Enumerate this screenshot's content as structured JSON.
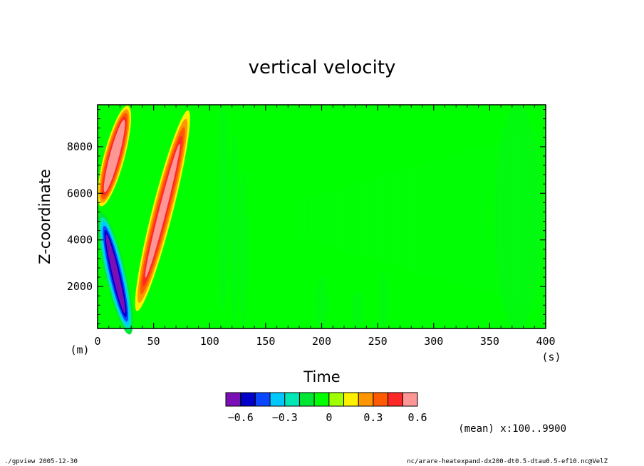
{
  "chart_data": {
    "type": "heatmap",
    "title": "vertical velocity",
    "xlabel": "Time",
    "ylabel": "Z-coordinate",
    "x_unit": "(s)",
    "y_unit": "(m)",
    "xlim": [
      0,
      400
    ],
    "ylim": [
      200,
      9800
    ],
    "x_ticks": [
      0,
      50,
      100,
      150,
      200,
      250,
      300,
      350,
      400
    ],
    "y_ticks": [
      2000,
      4000,
      6000,
      8000
    ],
    "colorbar": {
      "levels": [
        -0.7,
        -0.6,
        -0.5,
        -0.4,
        -0.3,
        -0.2,
        -0.1,
        0,
        0.1,
        0.2,
        0.3,
        0.4,
        0.5,
        0.6
      ],
      "colors": [
        "#7b0fb6",
        "#0000c8",
        "#0a46ff",
        "#00c8ff",
        "#00e6b4",
        "#00e632",
        "#00ff00",
        "#a0ff00",
        "#fff000",
        "#ff9600",
        "#ff5a00",
        "#ff2828",
        "#ff9696"
      ],
      "tick_labels": [
        "-0.6",
        "-0.3",
        "0",
        "0.3",
        "0.6"
      ]
    },
    "features": [
      {
        "kind": "upward-band",
        "start": [
          5,
          5800
        ],
        "end": [
          25,
          9400
        ],
        "peak": 0.6
      },
      {
        "kind": "downward-band",
        "start": [
          5,
          4800
        ],
        "end": [
          27,
          300
        ],
        "peak": -0.65
      },
      {
        "kind": "upward-band",
        "start": [
          37,
          1300
        ],
        "end": [
          79,
          9200
        ],
        "peak": 0.5
      }
    ],
    "annotation": "(mean) x:100..9900"
  },
  "footer": {
    "left": "./gpview  2005-12-30",
    "right": "nc/arare-heatexpand-dx200-dt0.5-dtau0.5-ef10.nc@VelZ"
  }
}
